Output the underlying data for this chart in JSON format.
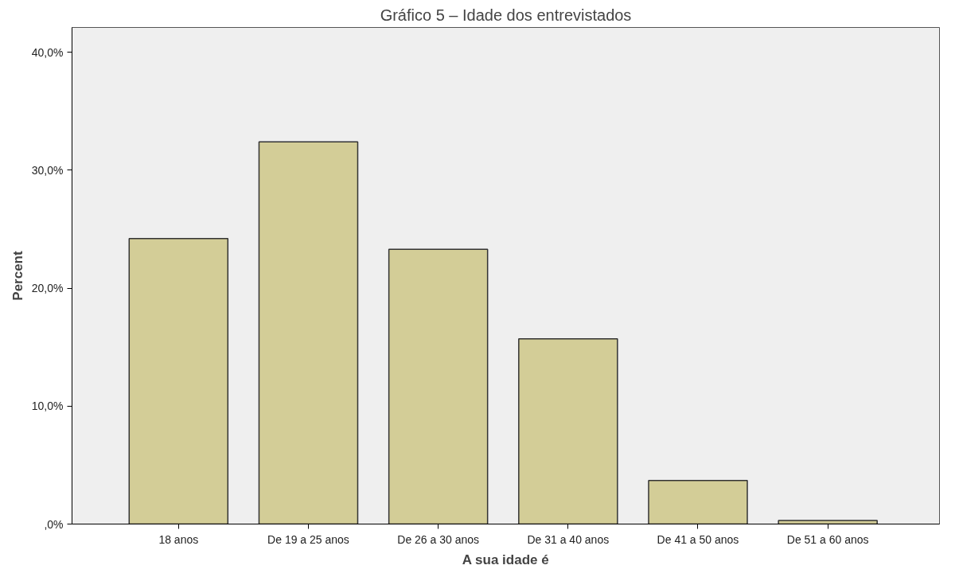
{
  "chart_data": {
    "type": "bar",
    "title": "Gráfico 5 – Idade dos entrevistados",
    "xlabel": "A sua idade é",
    "ylabel": "Percent",
    "categories": [
      "18 anos",
      "De 19 a 25 anos",
      "De 26 a 30 anos",
      "De 31 a 40 anos",
      "De 41 a 50 anos",
      "De 51 a 60 anos"
    ],
    "values": [
      24.2,
      32.4,
      23.3,
      15.7,
      3.7,
      0.3
    ],
    "color": "#d3cd97",
    "ylim": [
      0,
      42.1
    ],
    "yticks": [
      {
        "value": 0,
        "label": ",0%"
      },
      {
        "value": 10,
        "label": "10,0%"
      },
      {
        "value": 20,
        "label": "20,0%"
      },
      {
        "value": 30,
        "label": "30,0%"
      },
      {
        "value": 40,
        "label": "40,0%"
      }
    ],
    "grid": false
  }
}
